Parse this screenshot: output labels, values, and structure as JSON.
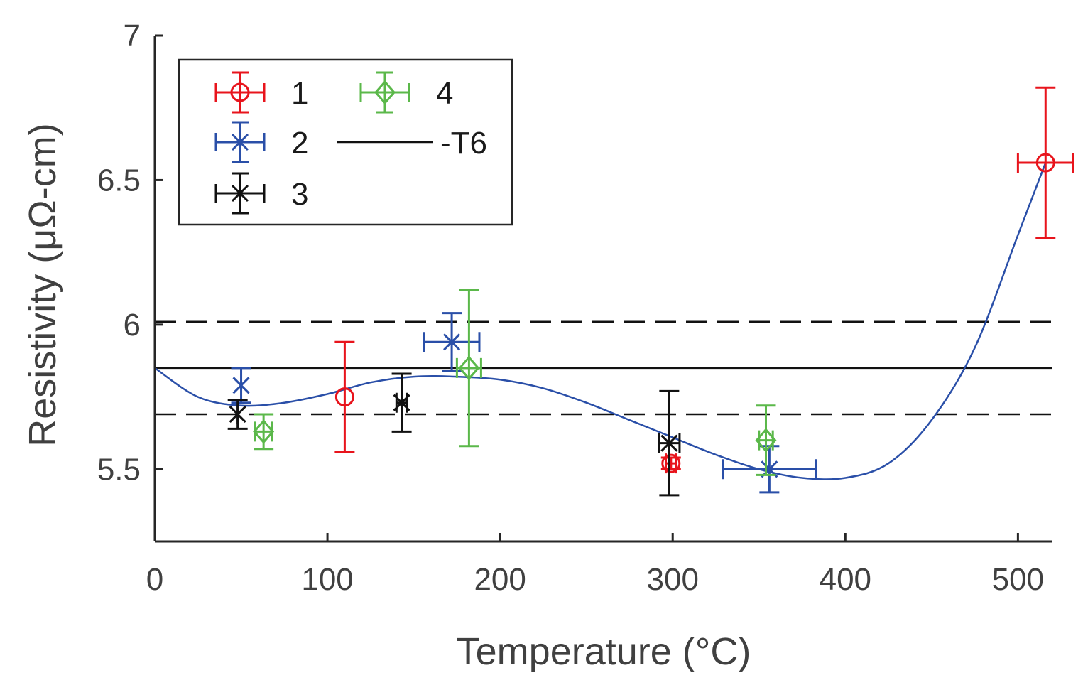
{
  "chart_data": {
    "type": "scatter",
    "title": "",
    "xlabel": "Temperature (°C)",
    "ylabel": "Resistivity (μΩ-cm)",
    "xlim": [
      0,
      520
    ],
    "ylim": [
      5.25,
      7
    ],
    "xticks": [
      0,
      100,
      200,
      300,
      400,
      500
    ],
    "yticks": [
      5.5,
      6,
      6.5,
      7
    ],
    "xtick_labels": [
      "0",
      "100",
      "200",
      "300",
      "400",
      "500"
    ],
    "ytick_labels": [
      "5.5",
      "6",
      "6.5",
      "7"
    ],
    "series": [
      {
        "name": "1",
        "label": "1",
        "marker": "circle",
        "color": "#e8141c",
        "points": [
          {
            "x": 110,
            "y": 5.75,
            "xerr": 0,
            "yerr": 0.19
          },
          {
            "x": 299,
            "y": 5.52,
            "xerr": 3,
            "yerr": 0.02
          },
          {
            "x": 516,
            "y": 6.56,
            "xerr": 16,
            "yerr": 0.26
          }
        ]
      },
      {
        "name": "2",
        "label": "2",
        "marker": "x",
        "color": "#2a4fa8",
        "points": [
          {
            "x": 50,
            "y": 5.79,
            "xerr": 0,
            "yerr": 0.06
          },
          {
            "x": 172,
            "y": 5.94,
            "xerr": 16,
            "yerr": 0.1
          },
          {
            "x": 356,
            "y": 5.5,
            "xerr": 27,
            "yerr": 0.08
          }
        ]
      },
      {
        "name": "3",
        "label": "3",
        "marker": "star",
        "color": "#111111",
        "points": [
          {
            "x": 48,
            "y": 5.69,
            "xerr": 0,
            "yerr": 0.05
          },
          {
            "x": 143,
            "y": 5.73,
            "xerr": 3,
            "yerr": 0.1
          },
          {
            "x": 298,
            "y": 5.59,
            "xerr": 6,
            "yerr": 0.18
          }
        ]
      },
      {
        "name": "4",
        "label": "4",
        "marker": "diamond",
        "color": "#5bb84a",
        "points": [
          {
            "x": 63,
            "y": 5.63,
            "xerr": 5,
            "yerr": 0.06
          },
          {
            "x": 182,
            "y": 5.85,
            "xerr": 7,
            "yerr": 0.27
          },
          {
            "x": 354,
            "y": 5.6,
            "xerr": 4,
            "yerr": 0.12
          }
        ]
      }
    ],
    "fit_curve": {
      "name": "fit",
      "color": "#2a4fa8",
      "x": [
        0,
        25,
        50,
        75,
        100,
        125,
        150,
        175,
        200,
        225,
        250,
        275,
        300,
        325,
        350,
        375,
        400,
        425,
        450,
        475,
        500,
        516
      ],
      "y": [
        5.85,
        5.75,
        5.72,
        5.73,
        5.76,
        5.8,
        5.82,
        5.82,
        5.81,
        5.78,
        5.73,
        5.67,
        5.61,
        5.55,
        5.5,
        5.47,
        5.47,
        5.52,
        5.67,
        5.92,
        6.31,
        6.56
      ]
    },
    "reference_lines": [
      {
        "name": "-T6",
        "label": "-T6",
        "y": 5.85,
        "style": "solid",
        "color": "#111111"
      },
      {
        "name": "T6-upper",
        "y": 6.01,
        "style": "dashed",
        "color": "#111111"
      },
      {
        "name": "T6-lower",
        "y": 5.69,
        "style": "dashed",
        "color": "#111111"
      }
    ],
    "legend": {
      "placement": "top-left",
      "entries": [
        {
          "label": "1",
          "series": 0,
          "type": "marker"
        },
        {
          "label": "2",
          "series": 1,
          "type": "marker"
        },
        {
          "label": "3",
          "series": 2,
          "type": "marker"
        },
        {
          "label": "4",
          "series": 3,
          "type": "marker"
        },
        {
          "label": "-T6",
          "type": "line"
        }
      ]
    }
  }
}
